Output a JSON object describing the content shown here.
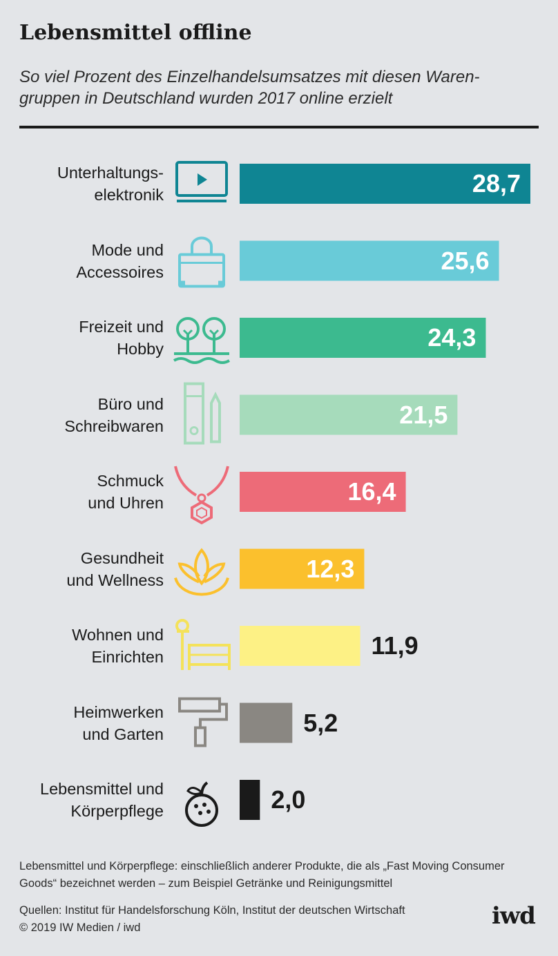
{
  "header": {
    "title": "Lebensmittel offline",
    "subtitle": "So viel Prozent des Einzelhandelsumsatzes mit diesen Waren-\ngruppen in Deutschland wurden 2017 online erzielt"
  },
  "chart_data": {
    "type": "bar",
    "orientation": "horizontal",
    "categories": [
      "Unterhaltungs-\nelektronik",
      "Mode und\nAccessoires",
      "Freizeit und\nHobby",
      "Büro und\nSchreibwaren",
      "Schmuck\nund Uhren",
      "Gesundheit\nund Wellness",
      "Wohnen und\nEinrichten",
      "Heimwerken\nund Garten",
      "Lebensmittel und\nKörperpflege"
    ],
    "values": [
      28.7,
      25.6,
      24.3,
      21.5,
      16.4,
      12.3,
      11.9,
      5.2,
      2.0
    ],
    "value_labels": [
      "28,7",
      "25,6",
      "24,3",
      "21,5",
      "16,4",
      "12,3",
      "11,9",
      "5,2",
      "2,0"
    ],
    "colors": [
      "#0f8593",
      "#69cbd8",
      "#3cba8f",
      "#a6dbbb",
      "#ed6b78",
      "#fbc02d",
      "#fdf185",
      "#8a8782",
      "#1a1a1a"
    ],
    "label_colors": [
      "#ffffff",
      "#ffffff",
      "#ffffff",
      "#ffffff",
      "#ffffff",
      "#ffffff",
      "#1a1a1a",
      "#1a1a1a",
      "#1a1a1a"
    ],
    "icons": [
      "tv-icon",
      "handbag-icon",
      "trees-icon",
      "binder-pencil-icon",
      "necklace-icon",
      "lotus-icon",
      "bed-icon",
      "paint-roller-icon",
      "fruit-icon"
    ],
    "xlim": [
      0,
      28.7
    ],
    "grid": false,
    "legend": "none"
  },
  "footer": {
    "note": "Lebensmittel und Körperpflege: einschließlich anderer Produkte, die als „Fast Moving Consumer Goods“ bezeichnet werden – zum Beispiel Getränke und Reinigungsmittel",
    "source": "Quellen: Institut für Handelsforschung Köln, Institut der deutschen Wirtschaft\n© 2019 IW Medien / iwd",
    "logo": "iwd"
  }
}
